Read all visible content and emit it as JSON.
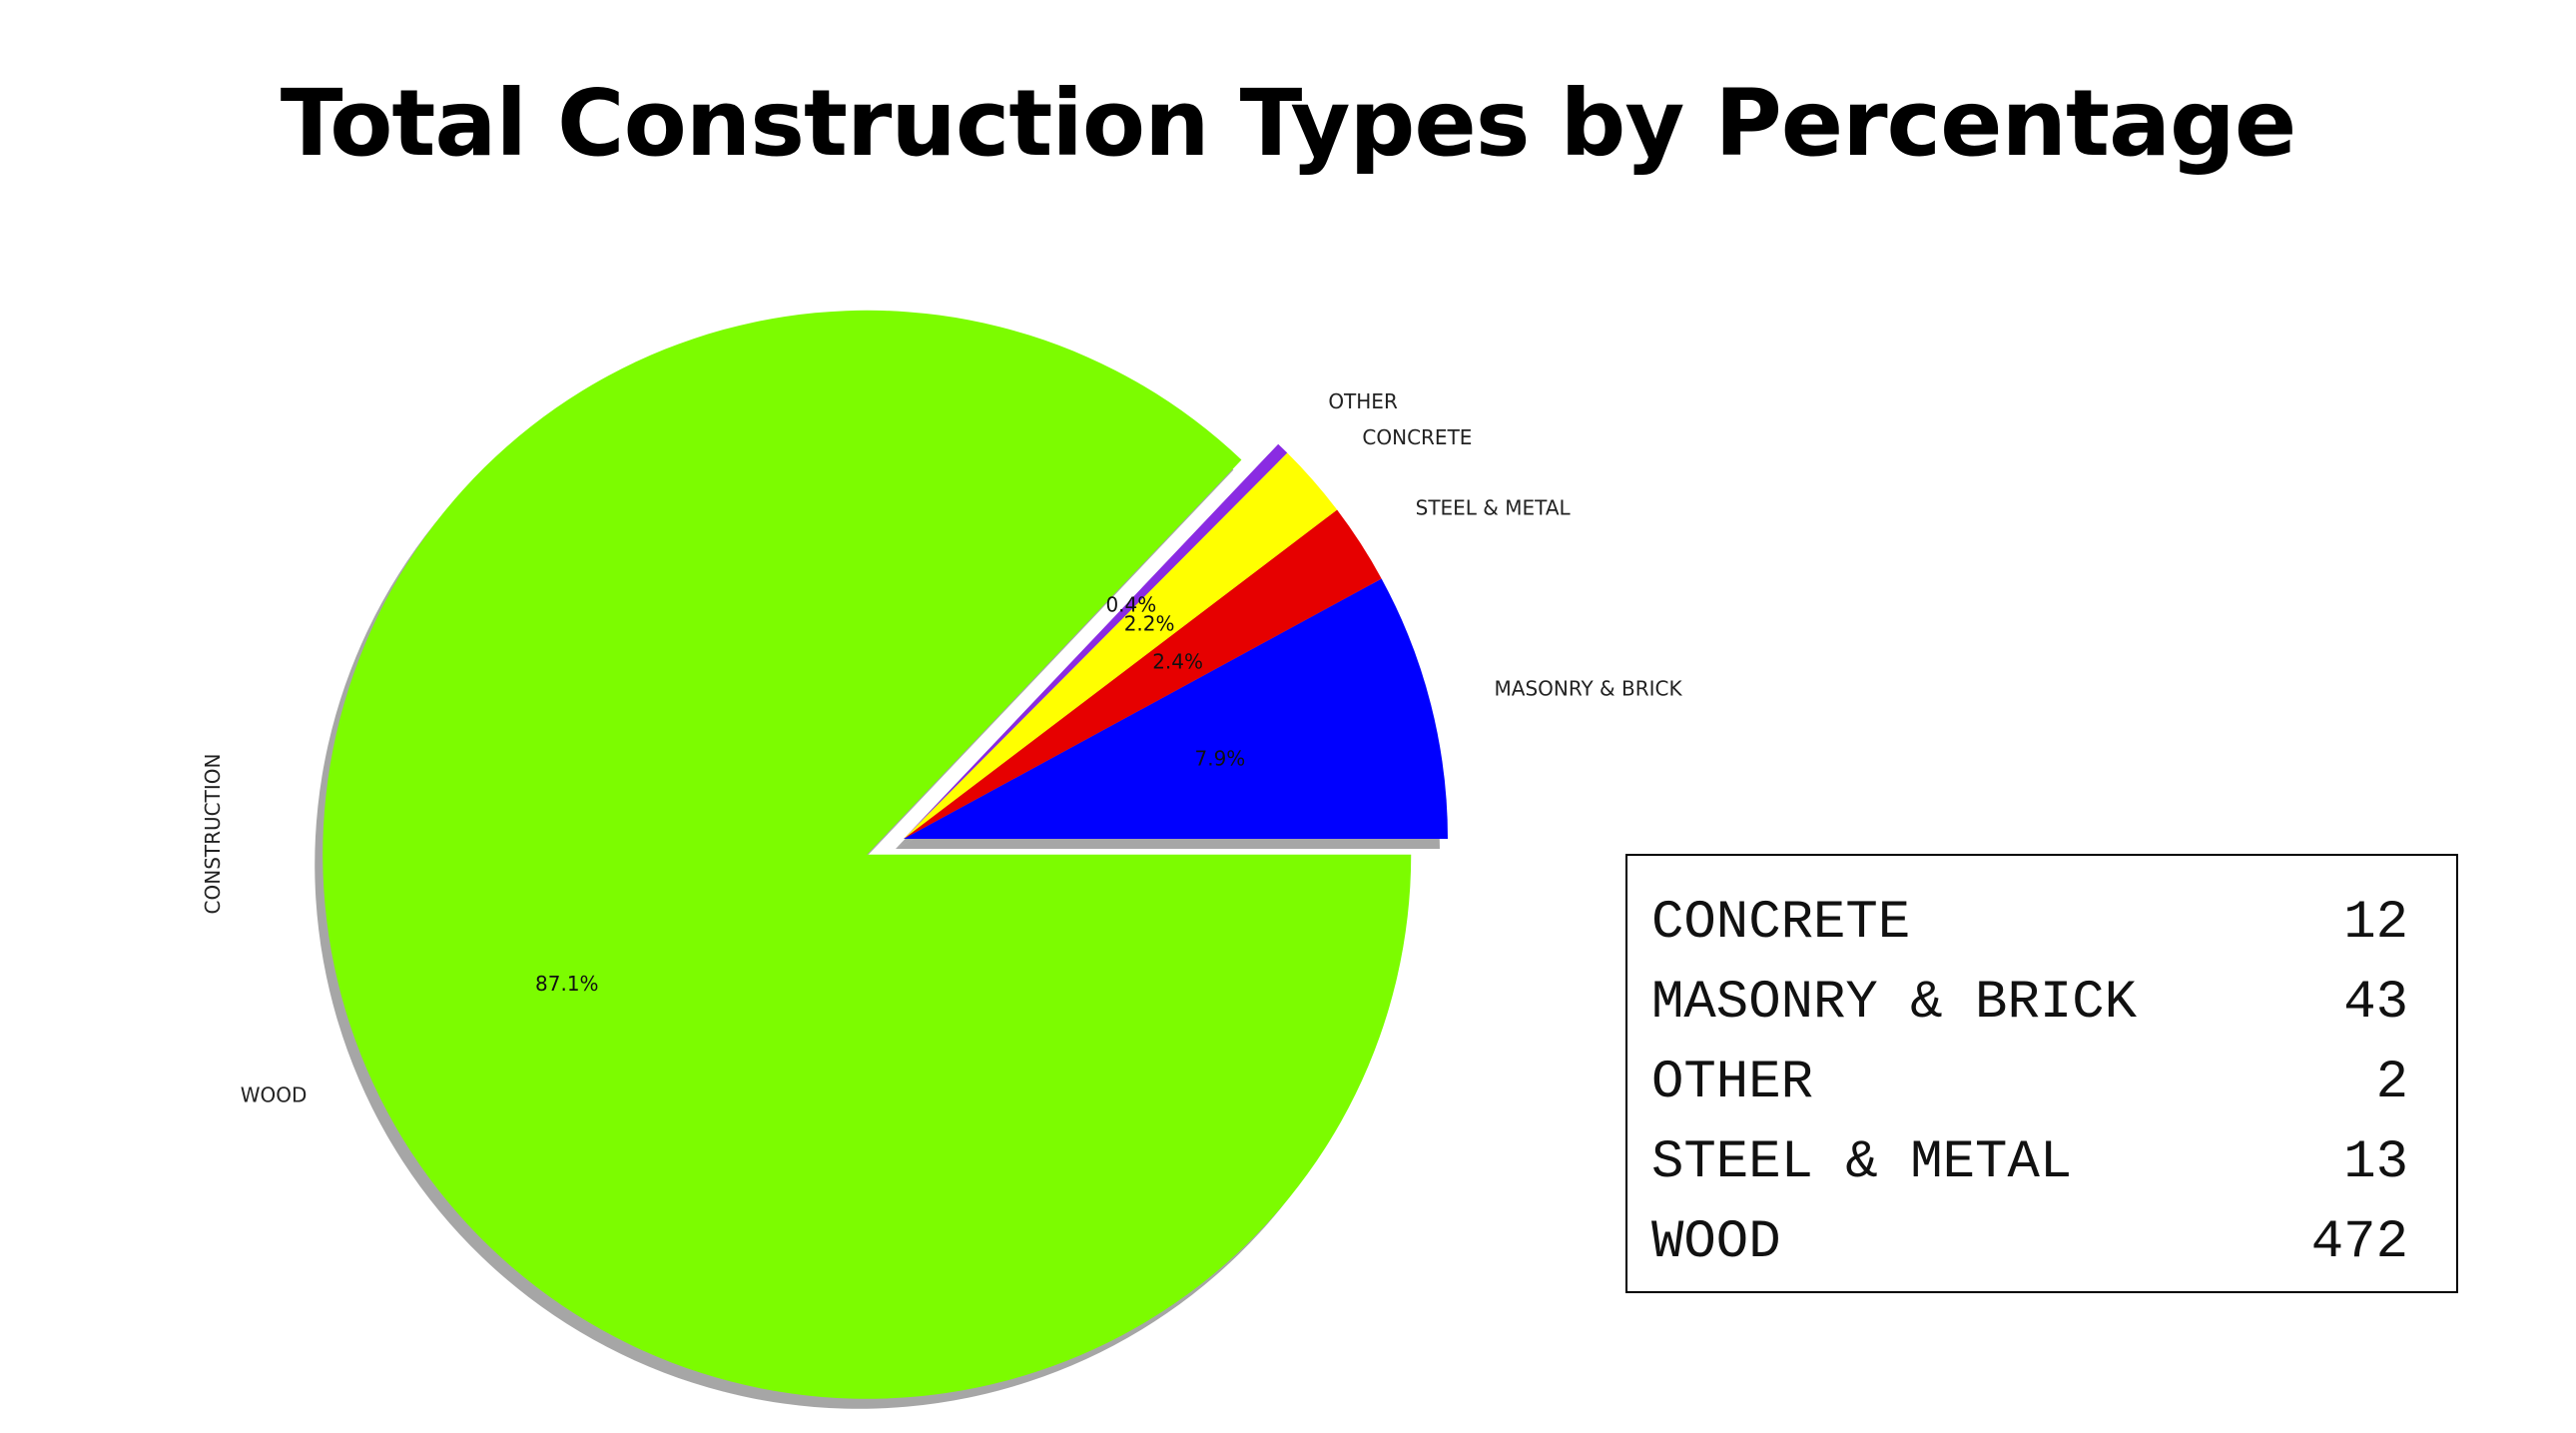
{
  "title": "Total Construction Types by Percentage",
  "chart_data": {
    "type": "pie",
    "ylabel": "CONSTRUCTION",
    "slices": [
      {
        "label": "MASONRY & BRICK",
        "value": 43,
        "percent_label": "7.9%",
        "color": "#0000ff"
      },
      {
        "label": "STEEL & METAL",
        "value": 13,
        "percent_label": "2.4%",
        "color": "#e60000"
      },
      {
        "label": "CONCRETE",
        "value": 12,
        "percent_label": "2.2%",
        "color": "#ffff00"
      },
      {
        "label": "OTHER",
        "value": 2,
        "percent_label": "0.4%",
        "color": "#8a2be2"
      },
      {
        "label": "WOOD",
        "value": 472,
        "percent_label": "87.1%",
        "color": "#7cfc00"
      }
    ],
    "exploded": [
      "WOOD"
    ],
    "shadow": true
  },
  "table": {
    "rows": [
      {
        "name": "CONCRETE",
        "value": "12"
      },
      {
        "name": "MASONRY & BRICK",
        "value": "43"
      },
      {
        "name": "OTHER",
        "value": "2"
      },
      {
        "name": "STEEL & METAL",
        "value": "13"
      },
      {
        "name": "WOOD",
        "value": "472"
      }
    ]
  }
}
